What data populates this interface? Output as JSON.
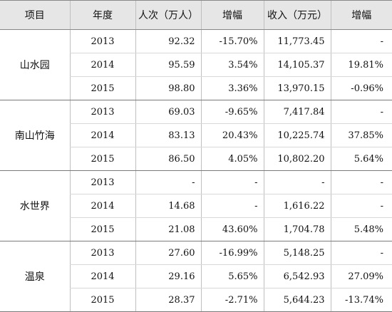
{
  "headers": {
    "item": "项目",
    "year": "年度",
    "visits": "人次（万人）",
    "visits_growth": "增幅",
    "revenue": "收入（万元）",
    "revenue_growth": "增幅"
  },
  "groups": [
    {
      "name": "山水园",
      "rows": [
        {
          "year": "2013",
          "visits": "92.32",
          "visits_growth": "-15.70%",
          "revenue": "11,773.45",
          "revenue_growth": "-"
        },
        {
          "year": "2014",
          "visits": "95.59",
          "visits_growth": "3.54%",
          "revenue": "14,105.37",
          "revenue_growth": "19.81%"
        },
        {
          "year": "2015",
          "visits": "98.80",
          "visits_growth": "3.36%",
          "revenue": "13,970.15",
          "revenue_growth": "-0.96%"
        }
      ]
    },
    {
      "name": "南山竹海",
      "rows": [
        {
          "year": "2013",
          "visits": "69.03",
          "visits_growth": "-9.65%",
          "revenue": "7,417.84",
          "revenue_growth": "-"
        },
        {
          "year": "2014",
          "visits": "83.13",
          "visits_growth": "20.43%",
          "revenue": "10,225.74",
          "revenue_growth": "37.85%"
        },
        {
          "year": "2015",
          "visits": "86.50",
          "visits_growth": "4.05%",
          "revenue": "10,802.20",
          "revenue_growth": "5.64%"
        }
      ]
    },
    {
      "name": "水世界",
      "rows": [
        {
          "year": "2013",
          "visits": "-",
          "visits_growth": "-",
          "revenue": "-",
          "revenue_growth": "-"
        },
        {
          "year": "2014",
          "visits": "14.68",
          "visits_growth": "-",
          "revenue": "1,616.22",
          "revenue_growth": "-"
        },
        {
          "year": "2015",
          "visits": "21.08",
          "visits_growth": "43.60%",
          "revenue": "1,704.78",
          "revenue_growth": "5.48%"
        }
      ]
    },
    {
      "name": "温泉",
      "rows": [
        {
          "year": "2013",
          "visits": "27.60",
          "visits_growth": "-16.99%",
          "revenue": "5,148.25",
          "revenue_growth": "-"
        },
        {
          "year": "2014",
          "visits": "29.16",
          "visits_growth": "5.65%",
          "revenue": "6,542.93",
          "revenue_growth": "27.09%"
        },
        {
          "year": "2015",
          "visits": "28.37",
          "visits_growth": "-2.71%",
          "revenue": "5,644.23",
          "revenue_growth": "-13.74%"
        }
      ]
    }
  ]
}
